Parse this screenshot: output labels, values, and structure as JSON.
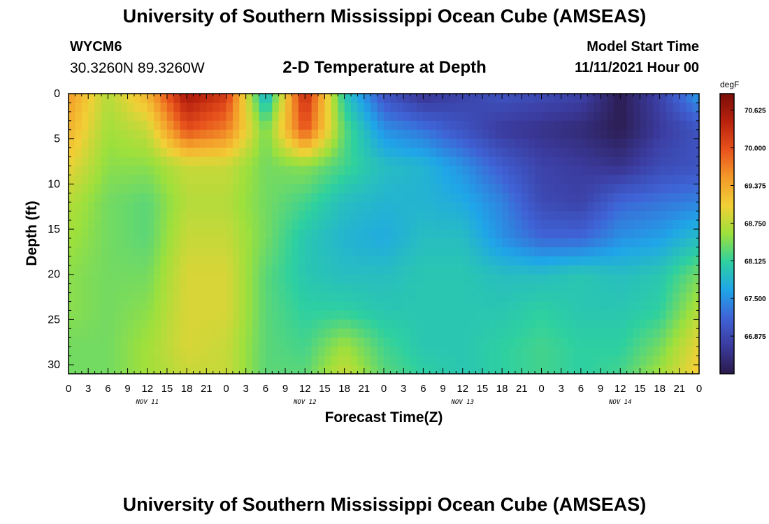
{
  "header": {
    "title": "University of Southern Mississippi Ocean Cube (AMSEAS)",
    "station_id": "WYCM6",
    "station_coords": "30.3260N  89.3260W",
    "plot_title": "2-D Temperature at Depth",
    "model_start_label": "Model Start Time",
    "model_start_value": "11/11/2021 Hour 00"
  },
  "footer": {
    "title": "University of Southern Mississippi Ocean Cube (AMSEAS)"
  },
  "chart_data": {
    "type": "heatmap",
    "title": "2-D Temperature at Depth",
    "xlabel": "Forecast Time(Z)",
    "ylabel": "Depth (ft)",
    "x_hours": [
      0,
      96
    ],
    "x_tick_labels": [
      "0",
      "3",
      "6",
      "9",
      "12",
      "15",
      "18",
      "21",
      "0",
      "3",
      "6",
      "9",
      "12",
      "15",
      "18",
      "21",
      "0",
      "3",
      "6",
      "9",
      "12",
      "15",
      "18",
      "21",
      "0",
      "3",
      "6",
      "9",
      "12",
      "15",
      "18",
      "21",
      "0"
    ],
    "day_labels": [
      "NOV 11",
      "NOV 12",
      "NOV 13",
      "NOV 14"
    ],
    "ylim": [
      31,
      0
    ],
    "y_ticks": [
      0,
      5,
      10,
      15,
      20,
      25,
      30
    ],
    "colorbar": {
      "unit": "degF",
      "range": [
        66.25,
        70.9
      ],
      "tick_labels": [
        "70.625",
        "70.000",
        "69.375",
        "68.750",
        "68.125",
        "67.500",
        "66.875"
      ],
      "tick_values": [
        70.625,
        70.0,
        69.375,
        68.75,
        68.125,
        67.5,
        66.875
      ],
      "colors": [
        "#2a1a4a",
        "#3b3b9e",
        "#3f63d6",
        "#1fa6e8",
        "#2ed0a0",
        "#9de03c",
        "#f2d036",
        "#f39a2a",
        "#e8521c",
        "#b8220e",
        "#7a0e08"
      ]
    },
    "depth_rows": [
      0,
      4,
      8,
      12,
      16,
      20,
      24,
      28,
      31
    ],
    "time_cols": [
      0,
      6,
      12,
      18,
      24,
      30,
      36,
      42,
      48,
      54,
      60,
      66,
      72,
      78,
      84,
      90,
      96
    ],
    "values": [
      [
        69.5,
        68.7,
        69.3,
        70.6,
        70.2,
        67.7,
        70.4,
        68.0,
        67.0,
        66.6,
        66.8,
        67.0,
        66.9,
        66.8,
        66.3,
        66.8,
        67.6
      ],
      [
        69.3,
        68.6,
        68.8,
        70.0,
        69.7,
        68.4,
        70.0,
        68.3,
        67.5,
        67.3,
        67.0,
        66.7,
        66.6,
        66.5,
        66.3,
        66.7,
        67.0
      ],
      [
        69.0,
        68.5,
        68.5,
        68.8,
        68.8,
        68.4,
        68.5,
        68.2,
        67.9,
        67.8,
        67.5,
        67.1,
        66.8,
        66.7,
        66.6,
        66.9,
        67.0
      ],
      [
        68.7,
        68.4,
        68.3,
        68.7,
        68.7,
        68.4,
        68.2,
        67.9,
        67.8,
        67.8,
        67.7,
        67.4,
        66.9,
        66.8,
        67.2,
        67.3,
        67.4
      ],
      [
        68.6,
        68.4,
        68.3,
        68.8,
        68.8,
        68.4,
        68.0,
        67.8,
        67.7,
        67.9,
        67.9,
        67.5,
        67.2,
        67.2,
        67.5,
        67.6,
        67.9
      ],
      [
        68.5,
        68.4,
        68.4,
        68.9,
        68.9,
        68.3,
        68.0,
        67.9,
        67.9,
        68.0,
        68.0,
        67.9,
        67.9,
        68.0,
        67.9,
        68.0,
        68.4
      ],
      [
        68.5,
        68.4,
        68.5,
        68.9,
        68.9,
        68.3,
        68.1,
        68.1,
        68.0,
        68.0,
        68.0,
        68.0,
        68.1,
        68.0,
        68.0,
        68.1,
        68.7
      ],
      [
        68.4,
        68.4,
        68.6,
        68.9,
        68.8,
        68.3,
        68.2,
        68.6,
        68.2,
        68.0,
        68.0,
        68.1,
        68.2,
        68.1,
        68.1,
        68.4,
        69.0
      ],
      [
        68.4,
        68.4,
        68.6,
        68.8,
        68.8,
        68.3,
        68.3,
        68.8,
        68.3,
        68.1,
        68.0,
        68.1,
        68.2,
        68.1,
        68.2,
        68.6,
        69.1
      ]
    ]
  }
}
